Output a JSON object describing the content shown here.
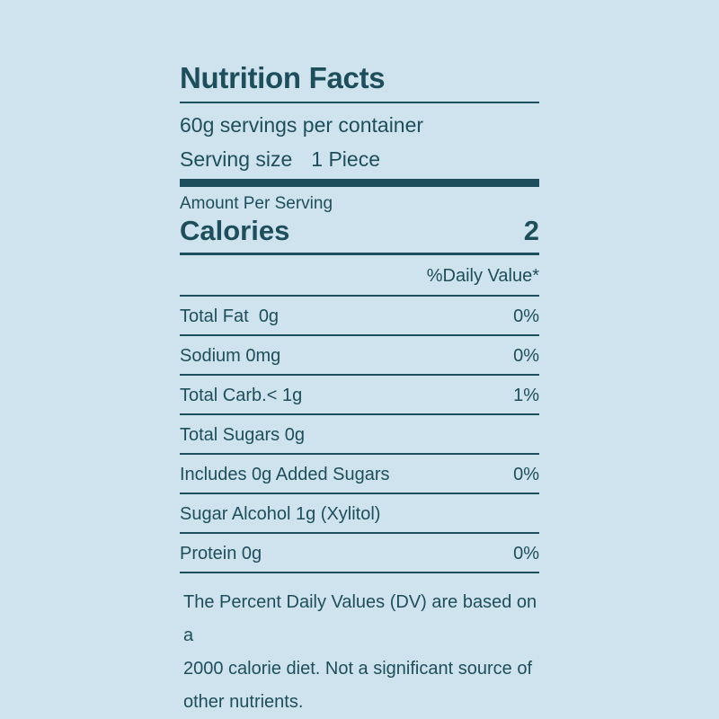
{
  "label": {
    "title": "Nutrition Facts",
    "servings_per_container": "60g servings per container",
    "serving_size": {
      "label": "Serving size",
      "value": "1 Piece"
    },
    "amount_per_serving": "Amount Per Serving",
    "calories": {
      "label": "Calories",
      "value": "2"
    },
    "daily_value_header": "%Daily Value*",
    "nutrients": [
      {
        "name": "Total Fat  0g",
        "daily_value": "0%"
      },
      {
        "name": "Sodium 0mg",
        "daily_value": "0%"
      },
      {
        "name": "Total Carb.< 1g",
        "daily_value": "1%"
      },
      {
        "name": "Total Sugars 0g",
        "daily_value": ""
      },
      {
        "name": "Includes 0g Added Sugars",
        "daily_value": "0%"
      },
      {
        "name": "Sugar Alcohol 1g (Xylitol)",
        "daily_value": ""
      },
      {
        "name": "Protein 0g",
        "daily_value": "0%"
      }
    ],
    "footnote_lines": [
      "The Percent Daily Values (DV) are based on a",
      "2000 calorie diet. Not a significant source of",
      "other nutrients."
    ],
    "colors": {
      "background": "#cfe3ee",
      "ink": "#1d4e5b"
    }
  }
}
